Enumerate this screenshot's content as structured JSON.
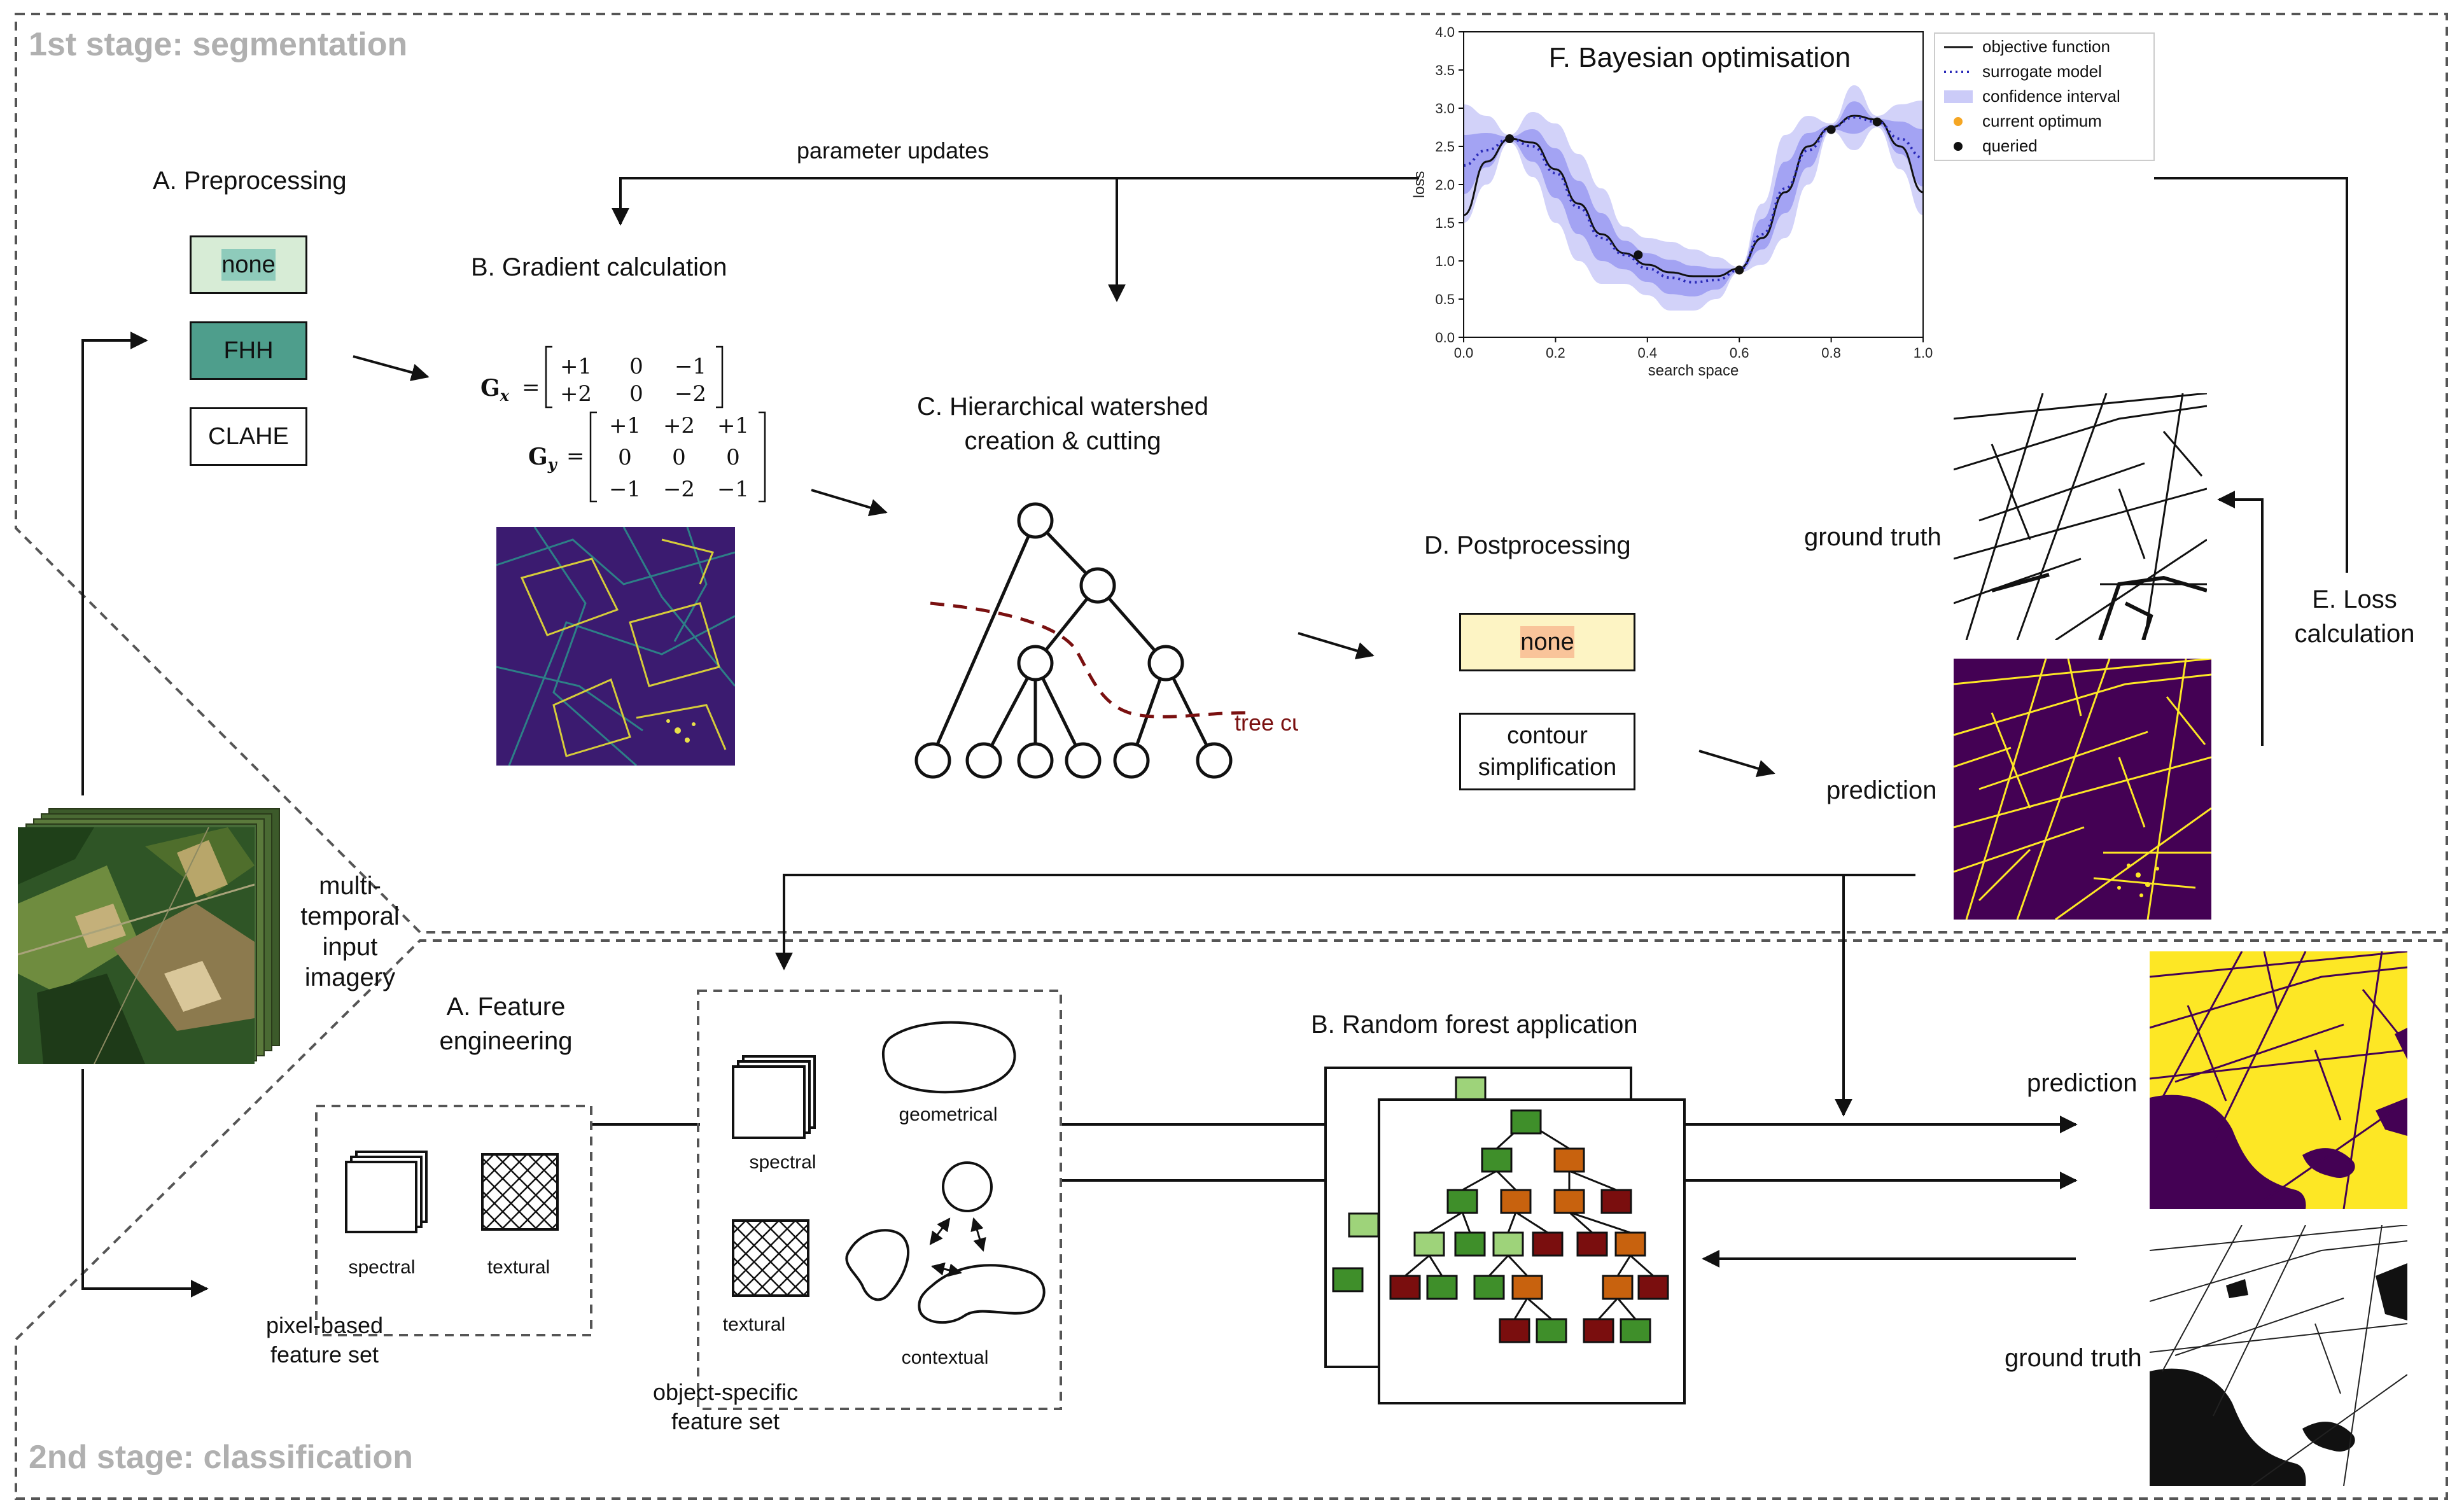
{
  "stage1": {
    "title": "1st stage: segmentation"
  },
  "stage2": {
    "title": "2nd stage: classification"
  },
  "input": {
    "label_lines": [
      "multi-",
      "temporal",
      "input",
      "imagery"
    ]
  },
  "preprocessing": {
    "title": "A. Preprocessing",
    "options": [
      "none",
      "FHH",
      "CLAHE"
    ],
    "colors": [
      "#d7ecd6",
      "#8ecbbb",
      "#4e9e8c"
    ]
  },
  "gradient": {
    "title": "B. Gradient calculation",
    "gx_label": "G",
    "gx_sub": "x",
    "gy_label": "G",
    "gy_sub": "y",
    "gx_rows": [
      [
        "+1",
        "0",
        "−1"
      ],
      [
        "+2",
        "0",
        "−2"
      ]
    ],
    "gy_rows": [
      [
        "+1",
        "+2",
        "+1"
      ],
      [
        "0",
        "0",
        "0"
      ],
      [
        "−1",
        "−2",
        "−1"
      ]
    ],
    "eq": "="
  },
  "watershed": {
    "title_lines": [
      "C. Hierarchical watershed",
      "creation & cutting"
    ],
    "cut_label": "tree cut",
    "cut_color": "#7a1010"
  },
  "parameter_updates": "parameter updates",
  "postprocessing": {
    "title": "D. Postprocessing",
    "options": [
      "none",
      "contour simplification"
    ],
    "colors": [
      "#fdf4c4",
      "#f9c49a"
    ]
  },
  "loss": {
    "title_lines": [
      "E. Loss",
      "calculation"
    ]
  },
  "segmentation_outputs": {
    "ground_truth": "ground truth",
    "prediction": "prediction"
  },
  "bayes": {
    "title": "F. Bayesian optimisation"
  },
  "chart_data": {
    "type": "line",
    "title": "F. Bayesian optimisation",
    "xlabel": "search space",
    "ylabel": "loss",
    "xlim": [
      0.0,
      1.0
    ],
    "ylim": [
      0.0,
      4.0
    ],
    "xticks": [
      "0.0",
      "0.2",
      "0.4",
      "0.6",
      "0.8",
      "1.0"
    ],
    "yticks": [
      "0.0",
      "0.5",
      "1.0",
      "1.5",
      "2.0",
      "2.5",
      "3.0",
      "3.5",
      "4.0"
    ],
    "x": [
      0.0,
      0.05,
      0.1,
      0.15,
      0.2,
      0.25,
      0.3,
      0.35,
      0.4,
      0.45,
      0.5,
      0.55,
      0.6,
      0.65,
      0.7,
      0.75,
      0.8,
      0.85,
      0.9,
      0.95,
      1.0
    ],
    "series": [
      {
        "name": "objective function",
        "style": "solid",
        "color": "#111111",
        "values": [
          1.6,
          2.3,
          2.6,
          2.55,
          2.2,
          1.75,
          1.35,
          1.1,
          0.95,
          0.85,
          0.8,
          0.8,
          0.9,
          1.3,
          1.9,
          2.5,
          2.75,
          2.9,
          2.85,
          2.5,
          1.9
        ]
      },
      {
        "name": "surrogate model",
        "style": "dotted",
        "color": "#2a2ab8",
        "values": [
          2.25,
          2.45,
          2.6,
          2.5,
          2.15,
          1.7,
          1.3,
          1.08,
          0.9,
          0.78,
          0.72,
          0.75,
          0.88,
          1.35,
          1.95,
          2.45,
          2.75,
          2.88,
          2.82,
          2.6,
          2.35
        ]
      },
      {
        "name": "confidence interval",
        "style": "band",
        "color": "#6b6bea",
        "lower": [
          1.5,
          2.0,
          2.55,
          2.1,
          1.5,
          1.0,
          0.7,
          0.7,
          0.55,
          0.35,
          0.35,
          0.5,
          0.85,
          0.95,
          1.3,
          2.0,
          2.7,
          2.45,
          2.75,
          2.2,
          1.6
        ],
        "upper": [
          3.05,
          2.9,
          2.65,
          2.95,
          2.8,
          2.4,
          1.95,
          1.45,
          1.3,
          1.25,
          1.15,
          1.05,
          0.92,
          1.75,
          2.65,
          2.9,
          2.8,
          3.3,
          2.9,
          3.05,
          3.1
        ]
      },
      {
        "name": "current optimum",
        "style": "marker",
        "color": "#f5a623",
        "points": [
          [
            0.6,
            0.88
          ]
        ]
      },
      {
        "name": "queried",
        "style": "marker",
        "color": "#111111",
        "points": [
          [
            0.1,
            2.6
          ],
          [
            0.38,
            1.08
          ],
          [
            0.6,
            0.88
          ],
          [
            0.8,
            2.72
          ],
          [
            0.9,
            2.82
          ]
        ]
      }
    ],
    "legend_position": "top-right",
    "grid": false
  },
  "feature_engineering": {
    "title_lines": [
      "A. Feature",
      "engineering"
    ]
  },
  "pixel_set": {
    "spectral": "spectral",
    "textural": "textural",
    "title_lines": [
      "pixel-based",
      "feature set"
    ]
  },
  "object_set": {
    "spectral": "spectral",
    "geometrical": "geometrical",
    "textural": "textural",
    "contextual": "contextual",
    "title_lines": [
      "object-specific",
      "feature set"
    ]
  },
  "random_forest": {
    "title": "B. Random forest application",
    "colors": [
      "#9ed37a",
      "#3f8f2a",
      "#1f5a14",
      "#c8620e",
      "#7a0e0e"
    ]
  },
  "classification_outputs": {
    "prediction": "prediction",
    "ground_truth": "ground truth"
  },
  "palette": {
    "viridis_dark": "#440154",
    "viridis_yellow": "#fde725"
  }
}
